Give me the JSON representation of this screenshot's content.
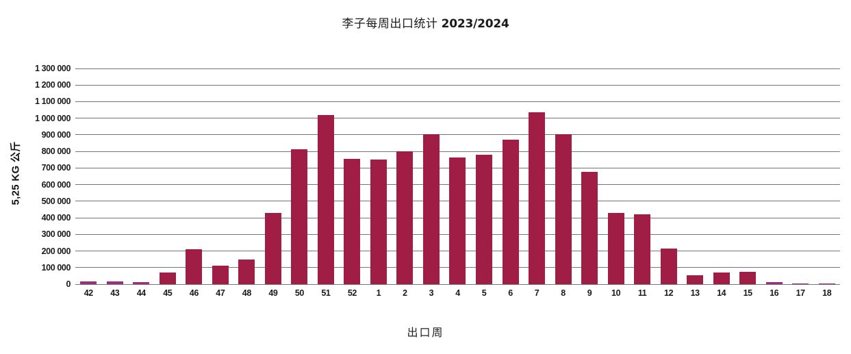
{
  "title": {
    "main": "李子每周出口统计",
    "season": "2023/2024"
  },
  "chart_data": {
    "type": "bar",
    "title": "李子每周出口统计 2023/2024",
    "xlabel": "出口周",
    "ylabel": "5,25 KG 公斤",
    "ylim": [
      0,
      1300000
    ],
    "grid": true,
    "legend": "none",
    "categories": [
      "42",
      "43",
      "44",
      "45",
      "46",
      "47",
      "48",
      "49",
      "50",
      "51",
      "52",
      "1",
      "2",
      "3",
      "4",
      "5",
      "6",
      "7",
      "8",
      "9",
      "10",
      "11",
      "12",
      "13",
      "14",
      "15",
      "16",
      "17",
      "18"
    ],
    "values": [
      15000,
      15000,
      12000,
      70000,
      210000,
      110000,
      150000,
      430000,
      815000,
      1020000,
      755000,
      750000,
      800000,
      905000,
      765000,
      780000,
      870000,
      1035000,
      905000,
      675000,
      430000,
      420000,
      215000,
      55000,
      70000,
      75000,
      12000,
      4000,
      4000
    ],
    "yticks": [
      {
        "value": 1300000,
        "label": "1 300 000"
      },
      {
        "value": 1200000,
        "label": "1 200 000"
      },
      {
        "value": 1100000,
        "label": "1 100 000"
      },
      {
        "value": 1000000,
        "label": "1 000 000"
      },
      {
        "value": 900000,
        "label": "900 000"
      },
      {
        "value": 800000,
        "label": "800 000"
      },
      {
        "value": 700000,
        "label": "700 000"
      },
      {
        "value": 600000,
        "label": "600 000"
      },
      {
        "value": 500000,
        "label": "500 000"
      },
      {
        "value": 400000,
        "label": "400 000"
      },
      {
        "value": 300000,
        "label": "300 000"
      },
      {
        "value": 200000,
        "label": "200 000"
      },
      {
        "value": 100000,
        "label": "100 000"
      },
      {
        "value": 0,
        "label": "0"
      }
    ],
    "colors": {
      "bar_main": "#A01D45",
      "bar_edge_weeks": "#9E2D82",
      "gridline": "#757575",
      "text": "#1A1A1A"
    },
    "edge_color_weeks": [
      "42",
      "43",
      "44",
      "16",
      "17",
      "18"
    ]
  }
}
